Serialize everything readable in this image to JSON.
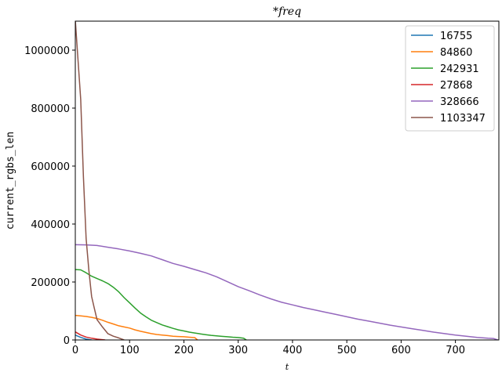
{
  "chart_data": {
    "type": "line",
    "title": "*freq",
    "xlabel": "t",
    "ylabel": "current_rgbs_len",
    "xlim": [
      0,
      780
    ],
    "ylim": [
      0,
      1100000
    ],
    "xticks": [
      0,
      100,
      200,
      300,
      400,
      500,
      600,
      700
    ],
    "yticks": [
      0,
      200000,
      400000,
      600000,
      800000,
      1000000
    ],
    "xtick_labels": [
      "0",
      "100",
      "200",
      "300",
      "400",
      "500",
      "600",
      "700"
    ],
    "ytick_labels": [
      "0",
      "200000",
      "400000",
      "600000",
      "800000",
      "1000000"
    ],
    "grid": false,
    "legend_position": "top-right",
    "series": [
      {
        "name": "16755",
        "color": "#1f77b4",
        "x": [
          0,
          10,
          20,
          30
        ],
        "y": [
          16755,
          9000,
          3000,
          0
        ]
      },
      {
        "name": "84860",
        "color": "#ff7f0e",
        "x": [
          0,
          10,
          20,
          30,
          40,
          50,
          60,
          70,
          80,
          90,
          100,
          110,
          120,
          130,
          140,
          150,
          160,
          170,
          180,
          190,
          200,
          210,
          220,
          225
        ],
        "y": [
          84860,
          83000,
          81000,
          78000,
          74000,
          68000,
          61000,
          55000,
          49000,
          45000,
          41000,
          35000,
          30000,
          26000,
          22000,
          19000,
          17000,
          15000,
          13000,
          12000,
          11000,
          9500,
          8000,
          0
        ]
      },
      {
        "name": "242931",
        "color": "#2ca02c",
        "x": [
          0,
          10,
          20,
          30,
          40,
          50,
          60,
          70,
          80,
          90,
          100,
          110,
          120,
          130,
          140,
          150,
          160,
          170,
          180,
          190,
          200,
          210,
          220,
          230,
          240,
          250,
          260,
          270,
          280,
          290,
          300,
          310,
          315
        ],
        "y": [
          242931,
          242000,
          232000,
          220000,
          212000,
          204000,
          195000,
          182000,
          166000,
          146000,
          128000,
          110000,
          93000,
          80000,
          68000,
          60000,
          52000,
          46000,
          40000,
          35000,
          31000,
          27000,
          24000,
          21000,
          18500,
          16000,
          14000,
          12500,
          11000,
          9500,
          8500,
          6000,
          0
        ]
      },
      {
        "name": "27868",
        "color": "#d62728",
        "x": [
          0,
          10,
          20,
          30,
          40,
          50,
          55
        ],
        "y": [
          27868,
          17000,
          10000,
          6000,
          3000,
          1000,
          0
        ]
      },
      {
        "name": "328666",
        "color": "#9467bd",
        "x": [
          0,
          20,
          40,
          60,
          80,
          100,
          120,
          140,
          160,
          180,
          200,
          220,
          240,
          260,
          280,
          300,
          320,
          340,
          360,
          380,
          400,
          420,
          440,
          460,
          480,
          500,
          520,
          540,
          560,
          580,
          600,
          620,
          640,
          660,
          680,
          700,
          720,
          740,
          760,
          770,
          778
        ],
        "y": [
          328666,
          328000,
          326000,
          320000,
          314000,
          307000,
          299000,
          290000,
          277000,
          264000,
          254000,
          243000,
          232000,
          218000,
          201000,
          184000,
          170000,
          155000,
          142000,
          130000,
          121000,
          112000,
          104000,
          96000,
          88000,
          80000,
          72000,
          65000,
          58000,
          51000,
          45000,
          39000,
          33000,
          27000,
          22000,
          17000,
          13000,
          9000,
          6000,
          5000,
          0
        ]
      },
      {
        "name": "1103347",
        "color": "#8c564b",
        "x": [
          0,
          10,
          15,
          20,
          25,
          30,
          35,
          40,
          50,
          60,
          70,
          80,
          90
        ],
        "y": [
          1103347,
          830000,
          560000,
          350000,
          240000,
          150000,
          110000,
          70000,
          45000,
          22000,
          13000,
          7000,
          0
        ]
      }
    ]
  }
}
